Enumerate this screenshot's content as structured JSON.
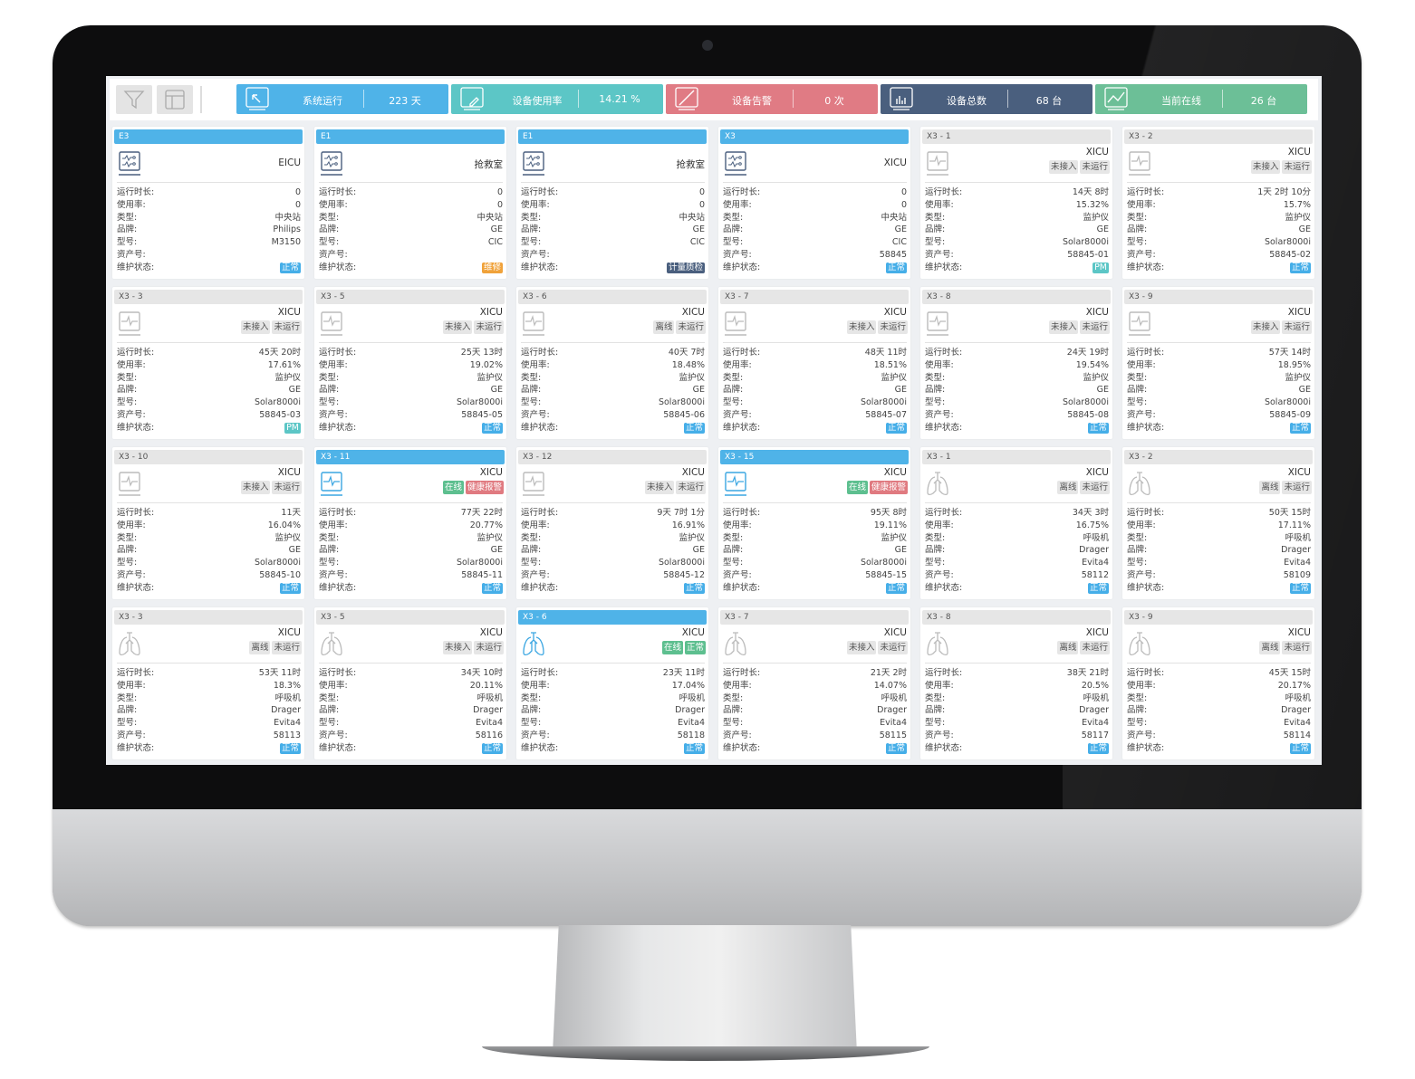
{
  "toolbar": {
    "filter_icon": "filter-icon",
    "layout_icon": "layout-icon",
    "stats": [
      {
        "label": "系统运行",
        "value": "223 天",
        "color": "#4fb3e8",
        "icon": "cursor-screen-icon"
      },
      {
        "label": "设备使用率",
        "value": "14.21 %",
        "color": "#5cc6c6",
        "icon": "edit-screen-icon"
      },
      {
        "label": "设备告警",
        "value": "0 次",
        "color": "#e07b84",
        "icon": "slash-screen-icon"
      },
      {
        "label": "设备总数",
        "value": "68 台",
        "color": "#4a5f7e",
        "icon": "bar-chart-screen-icon"
      },
      {
        "label": "当前在线",
        "value": "26 台",
        "color": "#6cbf97",
        "icon": "line-chart-screen-icon"
      }
    ]
  },
  "labels": [
    "运行时长:",
    "使用率:",
    "类型:",
    "品牌:",
    "型号:",
    "资产号:",
    "维护状态:"
  ],
  "colors": {
    "blue": "#45aee8",
    "teal": "#5cc6c6",
    "orange": "#f0a23a",
    "dark": "#4a5f7e",
    "green": "#5dbf8f",
    "red": "#e07a80",
    "gray": "#e6e6e6"
  },
  "cards": [
    {
      "header": "E3",
      "active": true,
      "icon": "central",
      "loc": "EICU",
      "tags": [],
      "values": [
        "0",
        "0",
        "中央站",
        "Philips",
        "M3150",
        ""
      ],
      "status": {
        "text": "正常",
        "color": "blue"
      }
    },
    {
      "header": "E1",
      "active": true,
      "icon": "central",
      "loc": "抢救室",
      "tags": [],
      "values": [
        "0",
        "0",
        "中央站",
        "GE",
        "CIC",
        ""
      ],
      "status": {
        "text": "维修",
        "color": "orange"
      }
    },
    {
      "header": "E1",
      "active": true,
      "icon": "central",
      "loc": "抢救室",
      "tags": [],
      "values": [
        "0",
        "0",
        "中央站",
        "GE",
        "CIC",
        ""
      ],
      "status": {
        "text": "计量质检",
        "color": "dark"
      }
    },
    {
      "header": "X3",
      "active": true,
      "icon": "central",
      "loc": "XICU",
      "tags": [],
      "values": [
        "0",
        "0",
        "中央站",
        "GE",
        "CIC",
        "58845"
      ],
      "status": {
        "text": "正常",
        "color": "blue"
      }
    },
    {
      "header": "X3 - 1",
      "active": false,
      "icon": "monitor",
      "loc": "XICU",
      "tags": [
        {
          "text": "未接入",
          "color": "gray"
        },
        {
          "text": "未运行",
          "color": "gray"
        }
      ],
      "values": [
        "14天 8时",
        "15.32%",
        "监护仪",
        "GE",
        "Solar8000i",
        "58845-01"
      ],
      "status": {
        "text": "PM",
        "color": "teal"
      }
    },
    {
      "header": "X3 - 2",
      "active": false,
      "icon": "monitor",
      "loc": "XICU",
      "tags": [
        {
          "text": "未接入",
          "color": "gray"
        },
        {
          "text": "未运行",
          "color": "gray"
        }
      ],
      "values": [
        "1天 2时 10分",
        "15.7%",
        "监护仪",
        "GE",
        "Solar8000i",
        "58845-02"
      ],
      "status": {
        "text": "正常",
        "color": "blue"
      }
    },
    {
      "header": "X3 - 3",
      "active": false,
      "icon": "monitor",
      "loc": "XICU",
      "tags": [
        {
          "text": "未接入",
          "color": "gray"
        },
        {
          "text": "未运行",
          "color": "gray"
        }
      ],
      "values": [
        "45天 20时",
        "17.61%",
        "监护仪",
        "GE",
        "Solar8000i",
        "58845-03"
      ],
      "status": {
        "text": "PM",
        "color": "teal"
      }
    },
    {
      "header": "X3 - 5",
      "active": false,
      "icon": "monitor",
      "loc": "XICU",
      "tags": [
        {
          "text": "未接入",
          "color": "gray"
        },
        {
          "text": "未运行",
          "color": "gray"
        }
      ],
      "values": [
        "25天 13时",
        "19.02%",
        "监护仪",
        "GE",
        "Solar8000i",
        "58845-05"
      ],
      "status": {
        "text": "正常",
        "color": "blue"
      }
    },
    {
      "header": "X3 - 6",
      "active": false,
      "icon": "monitor",
      "loc": "XICU",
      "tags": [
        {
          "text": "离线",
          "color": "gray"
        },
        {
          "text": "未运行",
          "color": "gray"
        }
      ],
      "values": [
        "40天 7时",
        "18.48%",
        "监护仪",
        "GE",
        "Solar8000i",
        "58845-06"
      ],
      "status": {
        "text": "正常",
        "color": "blue"
      }
    },
    {
      "header": "X3 - 7",
      "active": false,
      "icon": "monitor",
      "loc": "XICU",
      "tags": [
        {
          "text": "未接入",
          "color": "gray"
        },
        {
          "text": "未运行",
          "color": "gray"
        }
      ],
      "values": [
        "48天 11时",
        "18.51%",
        "监护仪",
        "GE",
        "Solar8000i",
        "58845-07"
      ],
      "status": {
        "text": "正常",
        "color": "blue"
      }
    },
    {
      "header": "X3 - 8",
      "active": false,
      "icon": "monitor",
      "loc": "XICU",
      "tags": [
        {
          "text": "未接入",
          "color": "gray"
        },
        {
          "text": "未运行",
          "color": "gray"
        }
      ],
      "values": [
        "24天 19时",
        "19.54%",
        "监护仪",
        "GE",
        "Solar8000i",
        "58845-08"
      ],
      "status": {
        "text": "正常",
        "color": "blue"
      }
    },
    {
      "header": "X3 - 9",
      "active": false,
      "icon": "monitor",
      "loc": "XICU",
      "tags": [
        {
          "text": "未接入",
          "color": "gray"
        },
        {
          "text": "未运行",
          "color": "gray"
        }
      ],
      "values": [
        "57天 14时",
        "18.95%",
        "监护仪",
        "GE",
        "Solar8000i",
        "58845-09"
      ],
      "status": {
        "text": "正常",
        "color": "blue"
      }
    },
    {
      "header": "X3 - 10",
      "active": false,
      "icon": "monitor",
      "loc": "XICU",
      "tags": [
        {
          "text": "未接入",
          "color": "gray"
        },
        {
          "text": "未运行",
          "color": "gray"
        }
      ],
      "values": [
        "11天",
        "16.04%",
        "监护仪",
        "GE",
        "Solar8000i",
        "58845-10"
      ],
      "status": {
        "text": "正常",
        "color": "blue"
      }
    },
    {
      "header": "X3 - 11",
      "active": true,
      "icon": "monitor",
      "loc": "XICU",
      "tags": [
        {
          "text": "在线",
          "color": "green"
        },
        {
          "text": "健康报警",
          "color": "red"
        }
      ],
      "values": [
        "77天 22时",
        "20.77%",
        "监护仪",
        "GE",
        "Solar8000i",
        "58845-11"
      ],
      "status": {
        "text": "正常",
        "color": "blue"
      }
    },
    {
      "header": "X3 - 12",
      "active": false,
      "icon": "monitor",
      "loc": "XICU",
      "tags": [
        {
          "text": "未接入",
          "color": "gray"
        },
        {
          "text": "未运行",
          "color": "gray"
        }
      ],
      "values": [
        "9天 7时 1分",
        "16.91%",
        "监护仪",
        "GE",
        "Solar8000i",
        "58845-12"
      ],
      "status": {
        "text": "正常",
        "color": "blue"
      }
    },
    {
      "header": "X3 - 15",
      "active": true,
      "icon": "monitor",
      "loc": "XICU",
      "tags": [
        {
          "text": "在线",
          "color": "green"
        },
        {
          "text": "健康报警",
          "color": "red"
        }
      ],
      "values": [
        "95天 8时",
        "19.11%",
        "监护仪",
        "GE",
        "Solar8000i",
        "58845-15"
      ],
      "status": {
        "text": "正常",
        "color": "blue"
      }
    },
    {
      "header": "X3 - 1",
      "active": false,
      "icon": "ventilator",
      "loc": "XICU",
      "tags": [
        {
          "text": "离线",
          "color": "gray"
        },
        {
          "text": "未运行",
          "color": "gray"
        }
      ],
      "values": [
        "34天 3时",
        "16.75%",
        "呼吸机",
        "Drager",
        "Evita4",
        "58112"
      ],
      "status": {
        "text": "正常",
        "color": "blue"
      }
    },
    {
      "header": "X3 - 2",
      "active": false,
      "icon": "ventilator",
      "loc": "XICU",
      "tags": [
        {
          "text": "离线",
          "color": "gray"
        },
        {
          "text": "未运行",
          "color": "gray"
        }
      ],
      "values": [
        "50天 15时",
        "17.11%",
        "呼吸机",
        "Drager",
        "Evita4",
        "58109"
      ],
      "status": {
        "text": "正常",
        "color": "blue"
      }
    },
    {
      "header": "X3 - 3",
      "active": false,
      "icon": "ventilator",
      "loc": "XICU",
      "tags": [
        {
          "text": "离线",
          "color": "gray"
        },
        {
          "text": "未运行",
          "color": "gray"
        }
      ],
      "values": [
        "53天 11时",
        "18.3%",
        "呼吸机",
        "Drager",
        "Evita4",
        "58113"
      ],
      "status": {
        "text": "正常",
        "color": "blue"
      }
    },
    {
      "header": "X3 - 5",
      "active": false,
      "icon": "ventilator",
      "loc": "XICU",
      "tags": [
        {
          "text": "未接入",
          "color": "gray"
        },
        {
          "text": "未运行",
          "color": "gray"
        }
      ],
      "values": [
        "34天 10时",
        "20.11%",
        "呼吸机",
        "Drager",
        "Evita4",
        "58116"
      ],
      "status": {
        "text": "正常",
        "color": "blue"
      }
    },
    {
      "header": "X3 - 6",
      "active": true,
      "icon": "ventilator",
      "loc": "XICU",
      "tags": [
        {
          "text": "在线",
          "color": "green"
        },
        {
          "text": "正常",
          "color": "green"
        }
      ],
      "values": [
        "23天 11时",
        "17.04%",
        "呼吸机",
        "Drager",
        "Evita4",
        "58118"
      ],
      "status": {
        "text": "正常",
        "color": "blue"
      }
    },
    {
      "header": "X3 - 7",
      "active": false,
      "icon": "ventilator",
      "loc": "XICU",
      "tags": [
        {
          "text": "未接入",
          "color": "gray"
        },
        {
          "text": "未运行",
          "color": "gray"
        }
      ],
      "values": [
        "21天 2时",
        "14.07%",
        "呼吸机",
        "Drager",
        "Evita4",
        "58115"
      ],
      "status": {
        "text": "正常",
        "color": "blue"
      }
    },
    {
      "header": "X3 - 8",
      "active": false,
      "icon": "ventilator",
      "loc": "XICU",
      "tags": [
        {
          "text": "离线",
          "color": "gray"
        },
        {
          "text": "未运行",
          "color": "gray"
        }
      ],
      "values": [
        "38天 21时",
        "20.5%",
        "呼吸机",
        "Drager",
        "Evita4",
        "58117"
      ],
      "status": {
        "text": "正常",
        "color": "blue"
      }
    },
    {
      "header": "X3 - 9",
      "active": false,
      "icon": "ventilator",
      "loc": "XICU",
      "tags": [
        {
          "text": "离线",
          "color": "gray"
        },
        {
          "text": "未运行",
          "color": "gray"
        }
      ],
      "values": [
        "45天 15时",
        "20.17%",
        "呼吸机",
        "Drager",
        "Evita4",
        "58114"
      ],
      "status": {
        "text": "正常",
        "color": "blue"
      }
    }
  ]
}
